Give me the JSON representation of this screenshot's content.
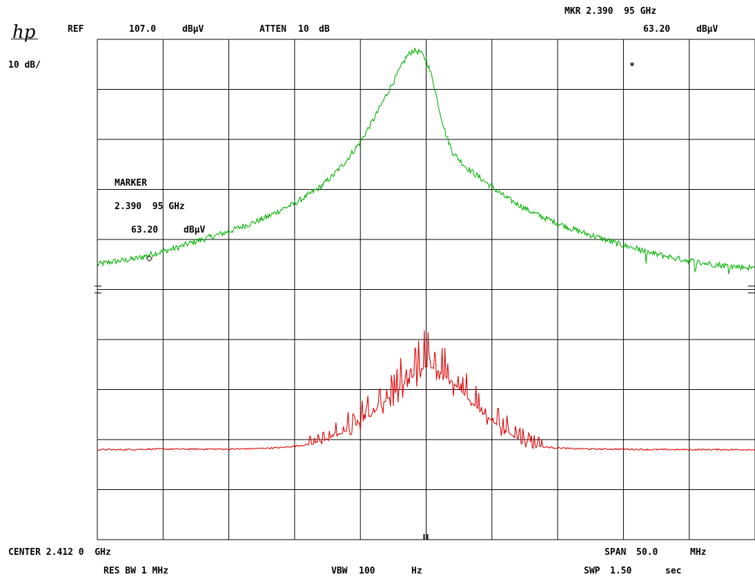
{
  "header": {
    "logo": "hp",
    "ref_label": "REF",
    "ref_value": "107.0",
    "ref_unit": "dBμV",
    "atten_label": "ATTEN",
    "atten_value": "10",
    "atten_unit": "dB",
    "scale": "10 dB/",
    "mkr_readout": "MKR 2.390  95 GHz",
    "mkr_level": "63.20",
    "mkr_unit": "dBμV"
  },
  "marker_box": {
    "title": "MARKER",
    "freq": "2.390  95 GHz",
    "level": "63.20",
    "unit": "dBμV",
    "symbol": "*"
  },
  "footer": {
    "center": "CENTER 2.412 0  GHz",
    "span_label": "SPAN",
    "span_value": "50.0",
    "span_unit": "MHz",
    "res_bw": "RES BW 1 MHz",
    "vbw_label": "VBW",
    "vbw_value": "100",
    "vbw_unit": "Hz",
    "swp_label": "SWP",
    "swp_value": "1.50",
    "swp_unit": "sec"
  },
  "chart_data": {
    "type": "line",
    "xlim": [
      2387.0,
      2437.0
    ],
    "ylim": [
      7.0,
      107.0
    ],
    "grid": true,
    "x_divisions": 10,
    "y_divisions": 10,
    "series": [
      {
        "color": "#00b000",
        "x": [
          2387.0,
          2388.0,
          2389.0,
          2390.0,
          2391.0,
          2392.0,
          2393.0,
          2394.0,
          2395.0,
          2396.0,
          2397.0,
          2398.0,
          2399.0,
          2400.0,
          2401.0,
          2402.0,
          2403.0,
          2404.0,
          2405.0,
          2406.0,
          2407.0,
          2408.0,
          2409.0,
          2410.0,
          2410.5,
          2411.0,
          2411.5,
          2412.0,
          2412.5,
          2413.0,
          2413.5,
          2414.0,
          2415.0,
          2416.0,
          2417.0,
          2418.0,
          2419.0,
          2420.0,
          2421.0,
          2422.0,
          2423.0,
          2424.0,
          2425.0,
          2426.0,
          2427.0,
          2428.0,
          2429.0,
          2430.0,
          2431.0,
          2432.0,
          2433.0,
          2434.0,
          2435.0,
          2436.0,
          2437.0
        ],
        "values": [
          62.0,
          62.5,
          62.8,
          63.2,
          64.0,
          64.6,
          65.3,
          66.2,
          67.0,
          67.8,
          68.6,
          69.6,
          70.5,
          71.6,
          73.0,
          74.2,
          75.8,
          77.6,
          80.0,
          83.0,
          86.5,
          91.0,
          96.0,
          101.0,
          103.5,
          104.8,
          104.5,
          103.0,
          99.0,
          93.0,
          88.0,
          84.5,
          81.5,
          79.5,
          77.5,
          75.5,
          74.0,
          72.5,
          71.3,
          70.3,
          69.2,
          68.3,
          67.5,
          66.6,
          65.8,
          65.2,
          64.3,
          63.8,
          63.2,
          62.8,
          62.3,
          62.0,
          61.7,
          61.5,
          61.3
        ]
      },
      {
        "color": "#e00000",
        "x": [
          2387.0,
          2389.0,
          2391.0,
          2393.0,
          2395.0,
          2397.0,
          2399.0,
          2401.0,
          2402.0,
          2403.0,
          2404.0,
          2405.0,
          2406.0,
          2407.0,
          2408.0,
          2409.0,
          2410.0,
          2411.0,
          2411.5,
          2412.0,
          2412.5,
          2413.0,
          2414.0,
          2415.0,
          2416.0,
          2417.0,
          2418.0,
          2419.0,
          2420.0,
          2421.0,
          2423.0,
          2425.0,
          2427.0,
          2429.0,
          2431.0,
          2433.0,
          2435.0,
          2437.0
        ],
        "values": [
          25.0,
          25.0,
          25.1,
          25.1,
          25.1,
          25.1,
          25.2,
          25.4,
          25.7,
          26.0,
          26.7,
          27.6,
          28.8,
          30.5,
          32.4,
          35.0,
          37.3,
          39.7,
          40.8,
          41.6,
          41.4,
          40.5,
          38.6,
          35.6,
          33.0,
          30.7,
          28.8,
          27.2,
          26.2,
          25.5,
          25.2,
          25.1,
          25.1,
          25.0,
          25.0,
          25.0,
          25.0,
          25.0
        ]
      }
    ]
  }
}
